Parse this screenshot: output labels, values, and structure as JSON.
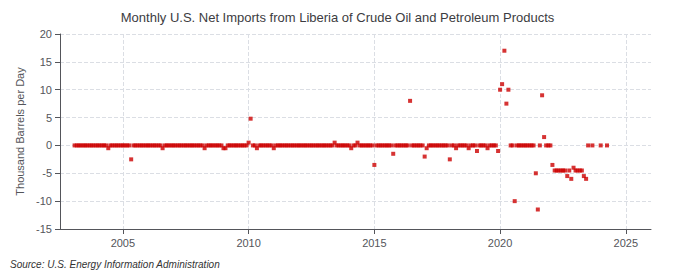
{
  "chart_data": {
    "type": "scatter",
    "title": "Monthly U.S. Net Imports from Liberia of Crude Oil and Petroleum Products",
    "y_label": "Thousand Barrels per Day",
    "annotation": "Source: U.S. Energy Information Administration",
    "color": "#cc0000",
    "marker": "square",
    "grid": true,
    "xlim": [
      2002.5,
      2026.0
    ],
    "xticks": [
      2005,
      2010,
      2015,
      2020,
      2025
    ],
    "ylim": [
      -15,
      20
    ],
    "yticks": [
      -15,
      -10,
      -5,
      0,
      5,
      10,
      15,
      20
    ],
    "x": [
      2003.08,
      2003.17,
      2003.25,
      2003.33,
      2003.42,
      2003.5,
      2003.58,
      2003.67,
      2003.75,
      2003.83,
      2003.92,
      2004.0,
      2004.08,
      2004.17,
      2004.25,
      2004.33,
      2004.42,
      2004.5,
      2004.58,
      2004.67,
      2004.75,
      2004.83,
      2004.92,
      2005.0,
      2005.08,
      2005.17,
      2005.25,
      2005.33,
      2005.42,
      2005.5,
      2005.58,
      2005.67,
      2005.75,
      2005.83,
      2005.92,
      2006.0,
      2006.08,
      2006.17,
      2006.25,
      2006.33,
      2006.42,
      2006.5,
      2006.58,
      2006.67,
      2006.75,
      2006.83,
      2006.92,
      2007.0,
      2007.08,
      2007.17,
      2007.25,
      2007.33,
      2007.42,
      2007.5,
      2007.58,
      2007.67,
      2007.75,
      2007.83,
      2007.92,
      2008.0,
      2008.08,
      2008.17,
      2008.25,
      2008.33,
      2008.42,
      2008.5,
      2008.58,
      2008.67,
      2008.75,
      2008.83,
      2008.92,
      2009.0,
      2009.08,
      2009.17,
      2009.25,
      2009.33,
      2009.42,
      2009.5,
      2009.58,
      2009.67,
      2009.75,
      2009.83,
      2009.92,
      2010.0,
      2010.08,
      2010.17,
      2010.25,
      2010.33,
      2010.42,
      2010.5,
      2010.58,
      2010.67,
      2010.75,
      2010.83,
      2010.92,
      2011.0,
      2011.08,
      2011.17,
      2011.25,
      2011.33,
      2011.42,
      2011.5,
      2011.58,
      2011.67,
      2011.75,
      2011.83,
      2011.92,
      2012.0,
      2012.08,
      2012.17,
      2012.25,
      2012.33,
      2012.42,
      2012.5,
      2012.58,
      2012.67,
      2012.75,
      2012.83,
      2012.92,
      2013.0,
      2013.08,
      2013.17,
      2013.25,
      2013.33,
      2013.42,
      2013.5,
      2013.58,
      2013.67,
      2013.75,
      2013.83,
      2013.92,
      2014.0,
      2014.08,
      2014.17,
      2014.25,
      2014.33,
      2014.42,
      2014.5,
      2014.58,
      2014.67,
      2014.75,
      2014.83,
      2014.92,
      2015.0,
      2015.08,
      2015.17,
      2015.25,
      2015.33,
      2015.42,
      2015.5,
      2015.58,
      2015.67,
      2015.75,
      2015.83,
      2015.92,
      2016.0,
      2016.08,
      2016.17,
      2016.25,
      2016.33,
      2016.42,
      2016.5,
      2016.58,
      2016.67,
      2016.75,
      2016.83,
      2016.92,
      2017.0,
      2017.08,
      2017.17,
      2017.25,
      2017.33,
      2017.42,
      2017.5,
      2017.58,
      2017.67,
      2017.75,
      2017.83,
      2017.92,
      2018.0,
      2018.08,
      2018.17,
      2018.25,
      2018.33,
      2018.42,
      2018.5,
      2018.58,
      2018.67,
      2018.75,
      2018.83,
      2018.92,
      2019.0,
      2019.08,
      2019.17,
      2019.25,
      2019.33,
      2019.42,
      2019.5,
      2019.58,
      2019.67,
      2019.75,
      2019.83,
      2019.92,
      2020.0,
      2020.08,
      2020.17,
      2020.25,
      2020.33,
      2020.42,
      2020.5,
      2020.58,
      2020.67,
      2020.75,
      2020.83,
      2020.92,
      2021.0,
      2021.08,
      2021.17,
      2021.25,
      2021.33,
      2021.42,
      2021.5,
      2021.58,
      2021.67,
      2021.75,
      2021.83,
      2021.92,
      2022.0,
      2022.08,
      2022.17,
      2022.25,
      2022.33,
      2022.42,
      2022.5,
      2022.58,
      2022.67,
      2022.75,
      2022.83,
      2022.92,
      2023.0,
      2023.08,
      2023.17,
      2023.25,
      2023.33,
      2023.42,
      2023.5,
      2023.67,
      2024.0,
      2024.25
    ],
    "values": [
      0,
      0,
      0,
      0,
      0,
      0,
      0,
      0,
      0,
      0,
      0,
      0,
      0,
      0,
      0,
      0,
      -0.5,
      0,
      0,
      0,
      0,
      0,
      0,
      0,
      0,
      0,
      0,
      -2.5,
      0,
      0,
      0,
      0,
      0,
      0,
      0,
      0,
      0,
      0,
      0,
      0,
      0,
      0,
      -0.5,
      0,
      0,
      0,
      0,
      0,
      0,
      0,
      0,
      0,
      0,
      0,
      0,
      0,
      0,
      0,
      0,
      0,
      0,
      0,
      -0.5,
      0,
      0,
      0,
      0,
      0,
      0,
      0,
      0,
      -0.5,
      -0.5,
      0,
      0,
      0,
      0,
      0,
      0,
      0,
      0,
      0,
      0,
      0.5,
      4.8,
      0,
      0,
      -0.5,
      0,
      0,
      0,
      0,
      0,
      0,
      0,
      -0.5,
      0,
      0,
      0,
      0,
      0,
      0,
      0,
      0,
      0,
      0,
      0,
      0,
      0,
      0,
      0,
      0,
      0,
      0,
      0,
      0,
      0,
      0,
      0,
      0,
      0,
      0,
      0,
      0,
      0.5,
      0,
      0,
      0,
      0,
      0,
      0,
      0,
      -0.5,
      0,
      0,
      0.5,
      0,
      0,
      0,
      0,
      0,
      0,
      0,
      -3.5,
      0,
      0,
      0,
      0,
      0,
      0,
      0,
      0,
      -1.5,
      0,
      0,
      0,
      0,
      0,
      0,
      0,
      8.0,
      0,
      0,
      0,
      0,
      0,
      0,
      -2.0,
      -0.5,
      0,
      0,
      0,
      0,
      0,
      0,
      0,
      0,
      0,
      0,
      -2.5,
      0,
      0,
      -0.5,
      0,
      0,
      0,
      0,
      0,
      -0.5,
      0,
      0,
      0,
      -1.0,
      0,
      0,
      0,
      0,
      -0.5,
      0,
      0,
      0,
      0,
      -1.0,
      10.0,
      11.0,
      17.0,
      7.5,
      10.0,
      0,
      0,
      -10.0,
      0,
      0,
      0,
      0,
      0,
      0,
      0,
      0,
      0,
      -5.0,
      -11.5,
      0,
      9.0,
      1.5,
      0,
      0,
      0,
      -3.5,
      -4.5,
      -4.5,
      -4.5,
      -4.5,
      -4.5,
      -4.5,
      -5.5,
      -4.5,
      -6.0,
      -4.0,
      -4.5,
      -4.5,
      -4.5,
      -4.5,
      -5.5,
      -6.0,
      0,
      0,
      0,
      0
    ]
  }
}
